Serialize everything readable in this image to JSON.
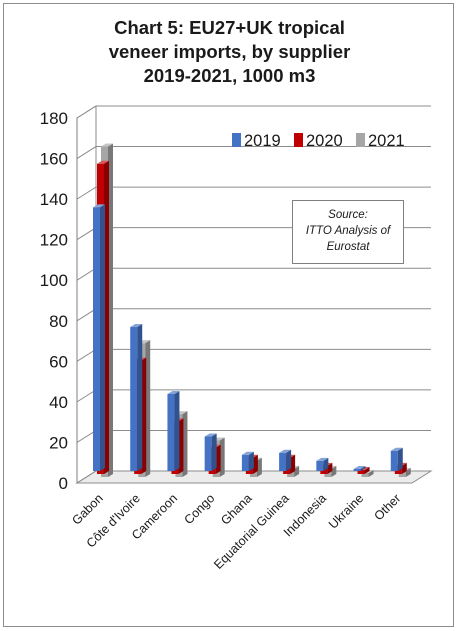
{
  "title_lines": [
    "Chart 5: EU27+UK tropical",
    "veneer imports, by supplier",
    "2019-2021, 1000 m3"
  ],
  "source_lines": [
    "Source:",
    "ITTO Analysis of",
    "Eurostat"
  ],
  "chart_data": {
    "type": "bar",
    "title": "Chart 5: EU27+UK tropical veneer imports, by supplier 2019-2021, 1000 m3",
    "categories": [
      "Gabon",
      "Côte d'Ivoire",
      "Cameroon",
      "Congo",
      "Ghana",
      "Equatorial Guinea",
      "Indonesia",
      "Ukraine",
      "Other"
    ],
    "series": [
      {
        "name": "2019",
        "color": "#4472c4",
        "values": [
          130,
          71,
          38,
          17,
          8,
          9,
          5,
          1,
          10
        ]
      },
      {
        "name": "2020",
        "color": "#c00000",
        "values": [
          153,
          56,
          26,
          13,
          8,
          8,
          4,
          2,
          4
        ]
      },
      {
        "name": "2021",
        "color": "#a6a6a6",
        "values": [
          163,
          66,
          31,
          18,
          8,
          4,
          4,
          2,
          3
        ]
      }
    ],
    "yticks": [
      0,
      20,
      40,
      60,
      80,
      100,
      120,
      140,
      160,
      180
    ],
    "ylim": [
      0,
      180
    ],
    "grid": true,
    "legend": "top-right"
  }
}
